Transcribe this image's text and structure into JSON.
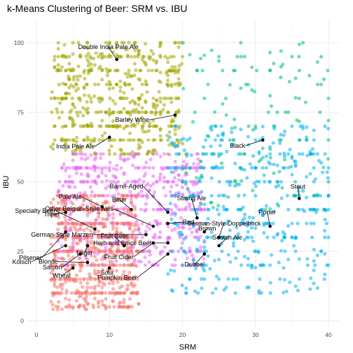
{
  "chart_data": {
    "type": "scatter",
    "title": "k-Means Clustering of Beer: SRM vs. IBU",
    "xlabel": "SRM",
    "ylabel": "IBU",
    "xlim": [
      0,
      41
    ],
    "ylim": [
      0,
      105
    ],
    "x_ticks": [
      0,
      10,
      20,
      30,
      40
    ],
    "y_ticks": [
      0,
      25,
      50,
      75,
      100
    ],
    "grid": true,
    "legend": "none",
    "cluster_colors": {
      "cluster_1": "#F8766D",
      "cluster_2": "#A3A500",
      "cluster_3": "#00BF7D",
      "cluster_4": "#00B0F6",
      "cluster_5": "#E76BF3"
    },
    "series": [
      {
        "color": "#A3A500",
        "point_count": 520,
        "x_range": [
          2,
          20
        ],
        "y_range": [
          60,
          100
        ],
        "values": [
          [
            3,
            100
          ],
          [
            5,
            100
          ],
          [
            7,
            98
          ],
          [
            9,
            96
          ],
          [
            11,
            100
          ],
          [
            13,
            95
          ],
          [
            15,
            92
          ],
          [
            17,
            100
          ],
          [
            19,
            100
          ],
          [
            4,
            90
          ],
          [
            6,
            88
          ],
          [
            8,
            85
          ],
          [
            10,
            90
          ],
          [
            12,
            82
          ],
          [
            14,
            80
          ],
          [
            16,
            78
          ],
          [
            18,
            85
          ],
          [
            3,
            80
          ],
          [
            5,
            78
          ],
          [
            7,
            75
          ],
          [
            9,
            72
          ],
          [
            11,
            70
          ],
          [
            13,
            70
          ],
          [
            15,
            68
          ],
          [
            17,
            65
          ],
          [
            19,
            70
          ],
          [
            4,
            65
          ],
          [
            6,
            62
          ],
          [
            8,
            60
          ],
          [
            10,
            65
          ],
          [
            12,
            60
          ],
          [
            14,
            62
          ],
          [
            16,
            60
          ],
          [
            18,
            60
          ],
          [
            5,
            70
          ],
          [
            7,
            66
          ],
          [
            9,
            80
          ],
          [
            11,
            85
          ],
          [
            13,
            88
          ],
          [
            15,
            85
          ],
          [
            6,
            95
          ],
          [
            8,
            92
          ],
          [
            10,
            98
          ],
          [
            12,
            100
          ],
          [
            14,
            97
          ],
          [
            16,
            96
          ],
          [
            18,
            93
          ],
          [
            3,
            92
          ],
          [
            4,
            85
          ],
          [
            20,
            95
          ]
        ]
      },
      {
        "color": "#E76BF3",
        "point_count": 580,
        "x_range": [
          3,
          23
        ],
        "y_range": [
          20,
          60
        ],
        "values": [
          [
            5,
            55
          ],
          [
            7,
            52
          ],
          [
            9,
            50
          ],
          [
            11,
            48
          ],
          [
            13,
            45
          ],
          [
            15,
            42
          ],
          [
            17,
            40
          ],
          [
            19,
            38
          ],
          [
            21,
            35
          ],
          [
            6,
            45
          ],
          [
            8,
            40
          ],
          [
            10,
            38
          ],
          [
            12,
            35
          ],
          [
            14,
            33
          ],
          [
            16,
            30
          ],
          [
            18,
            30
          ],
          [
            20,
            28
          ],
          [
            22,
            32
          ],
          [
            7,
            35
          ],
          [
            9,
            30
          ],
          [
            11,
            28
          ],
          [
            13,
            26
          ],
          [
            15,
            25
          ],
          [
            17,
            24
          ],
          [
            19,
            22
          ],
          [
            10,
            55
          ],
          [
            12,
            58
          ],
          [
            14,
            55
          ],
          [
            16,
            52
          ],
          [
            18,
            50
          ],
          [
            20,
            48
          ],
          [
            22,
            45
          ],
          [
            8,
            58
          ],
          [
            6,
            60
          ],
          [
            4,
            50
          ],
          [
            23,
            40
          ]
        ]
      },
      {
        "color": "#F8766D",
        "point_count": 650,
        "x_range": [
          2,
          14
        ],
        "y_range": [
          4,
          45
        ],
        "values": [
          [
            3,
            10
          ],
          [
            4,
            15
          ],
          [
            5,
            20
          ],
          [
            6,
            25
          ],
          [
            7,
            30
          ],
          [
            8,
            35
          ],
          [
            9,
            40
          ],
          [
            3,
            25
          ],
          [
            4,
            30
          ],
          [
            5,
            35
          ],
          [
            6,
            40
          ],
          [
            7,
            12
          ],
          [
            8,
            18
          ],
          [
            9,
            22
          ],
          [
            10,
            28
          ],
          [
            11,
            32
          ],
          [
            12,
            20
          ],
          [
            13,
            15
          ],
          [
            4,
            8
          ],
          [
            5,
            5
          ],
          [
            6,
            10
          ],
          [
            7,
            6
          ],
          [
            8,
            8
          ],
          [
            9,
            12
          ],
          [
            10,
            15
          ],
          [
            11,
            18
          ],
          [
            3,
            35
          ],
          [
            4,
            40
          ],
          [
            5,
            42
          ],
          [
            6,
            18
          ],
          [
            7,
            22
          ],
          [
            8,
            26
          ],
          [
            12,
            30
          ],
          [
            14,
            25
          ],
          [
            13,
            10
          ]
        ]
      },
      {
        "color": "#00B0F6",
        "point_count": 420,
        "x_range": [
          18,
          40
        ],
        "y_range": [
          10,
          70
        ],
        "values": [
          [
            20,
            20
          ],
          [
            22,
            25
          ],
          [
            24,
            30
          ],
          [
            26,
            35
          ],
          [
            28,
            40
          ],
          [
            30,
            45
          ],
          [
            32,
            50
          ],
          [
            34,
            55
          ],
          [
            36,
            60
          ],
          [
            38,
            65
          ],
          [
            40,
            40
          ],
          [
            21,
            15
          ],
          [
            23,
            18
          ],
          [
            25,
            22
          ],
          [
            27,
            28
          ],
          [
            29,
            32
          ],
          [
            31,
            38
          ],
          [
            33,
            42
          ],
          [
            35,
            30
          ],
          [
            37,
            35
          ],
          [
            39,
            25
          ],
          [
            40,
            20
          ],
          [
            19,
            35
          ],
          [
            24,
            45
          ],
          [
            28,
            55
          ],
          [
            32,
            60
          ],
          [
            36,
            48
          ],
          [
            40,
            55
          ],
          [
            26,
            12
          ],
          [
            30,
            25
          ],
          [
            34,
            30
          ],
          [
            38,
            45
          ],
          [
            40,
            30
          ],
          [
            20,
            50
          ],
          [
            22,
            40
          ],
          [
            25,
            60
          ],
          [
            30,
            65
          ],
          [
            35,
            70
          ]
        ]
      },
      {
        "color": "#00BF7D",
        "point_count": 120,
        "x_range": [
          20,
          40
        ],
        "y_range": [
          40,
          100
        ],
        "values": [
          [
            21,
            55
          ],
          [
            24,
            60
          ],
          [
            27,
            65
          ],
          [
            30,
            70
          ],
          [
            33,
            75
          ],
          [
            36,
            80
          ],
          [
            39,
            85
          ],
          [
            22,
            90
          ],
          [
            25,
            95
          ],
          [
            28,
            100
          ],
          [
            31,
            62
          ],
          [
            34,
            58
          ],
          [
            37,
            66
          ],
          [
            40,
            72
          ],
          [
            23,
            80
          ],
          [
            26,
            74
          ],
          [
            29,
            85
          ],
          [
            32,
            90
          ],
          [
            35,
            95
          ],
          [
            38,
            60
          ],
          [
            40,
            65
          ],
          [
            40,
            50
          ]
        ]
      }
    ],
    "style_labels": [
      {
        "text": "Double India Pale Ale",
        "x": 11,
        "y": 94
      },
      {
        "text": "Barley Wine",
        "x": 19,
        "y": 74
      },
      {
        "text": "India Pale Ale",
        "x": 10,
        "y": 66
      },
      {
        "text": "Black",
        "x": 31,
        "y": 65
      },
      {
        "text": "Stout",
        "x": 36,
        "y": 44
      },
      {
        "text": "Barrel-Aged",
        "x": 18,
        "y": 39
      },
      {
        "text": "Pale Ale",
        "x": 9,
        "y": 41
      },
      {
        "text": "Bitter",
        "x": 13,
        "y": 40
      },
      {
        "text": "Tripel",
        "x": 4,
        "y": 39
      },
      {
        "text": "Strong Ale",
        "x": 22,
        "y": 37
      },
      {
        "text": "Specialty Beer",
        "x": 8,
        "y": 33
      },
      {
        "text": "Other Belgian-Style Ales",
        "x": 16,
        "y": 34
      },
      {
        "text": "Brown",
        "x": 23,
        "y": 32
      },
      {
        "text": "Porter",
        "x": 32,
        "y": 34
      },
      {
        "text": "Pilsener",
        "x": 4,
        "y": 32
      },
      {
        "text": "Red",
        "x": 18,
        "y": 35
      },
      {
        "text": "German-Style Doppelbock",
        "x": 25,
        "y": 30
      },
      {
        "text": "German-Style Marzen",
        "x": 15,
        "y": 31
      },
      {
        "text": "Lager",
        "x": 7,
        "y": 27
      },
      {
        "text": "Kölsch",
        "x": 4,
        "y": 27
      },
      {
        "text": "Saison",
        "x": 6,
        "y": 24
      },
      {
        "text": "Herb and Spice Beer",
        "x": 18,
        "y": 28
      },
      {
        "text": "Scotch Ale",
        "x": 25,
        "y": 27
      },
      {
        "text": "Blonde",
        "x": 7,
        "y": 21
      },
      {
        "text": "Fruit Beer",
        "x": 12,
        "y": 27
      },
      {
        "text": "Dubbel",
        "x": 23,
        "y": 24
      },
      {
        "text": "Sour",
        "x": 10,
        "y": 19
      },
      {
        "text": "Fruit Cider",
        "x": 16,
        "y": 28
      },
      {
        "text": "Wheat",
        "x": 5,
        "y": 19
      },
      {
        "text": "Pumpkin Beer",
        "x": 18,
        "y": 24
      }
    ]
  }
}
